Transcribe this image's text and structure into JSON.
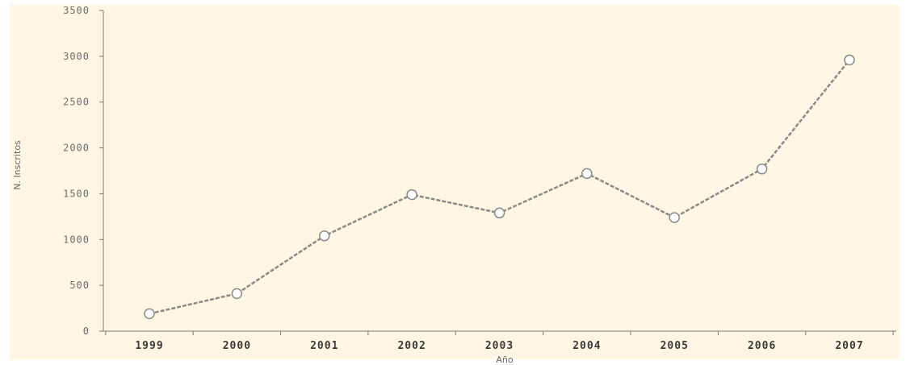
{
  "chart_data": {
    "type": "line",
    "title": "",
    "xlabel": "Año",
    "ylabel": "N. Inscritos",
    "categories": [
      "1999",
      "2000",
      "2001",
      "2002",
      "2003",
      "2004",
      "2005",
      "2006",
      "2007"
    ],
    "series": [
      {
        "values": [
          190,
          410,
          1040,
          1490,
          1290,
          1720,
          1240,
          1770,
          2960
        ]
      }
    ],
    "ylim": [
      0,
      3500
    ],
    "yticks": [
      0,
      500,
      1000,
      1500,
      2000,
      2500,
      3000,
      3500
    ],
    "ytick_labels": [
      "0",
      "500",
      "1000",
      "1500",
      "2000",
      "2500",
      "3000",
      "3500"
    ],
    "grid": false,
    "legend": "none",
    "colors": {
      "background": "#ffffff",
      "plot_background": "#fff7e3",
      "line": "#8a8a8a",
      "marker_fill": "#ffffff",
      "axis": "#7a7a7a"
    }
  }
}
